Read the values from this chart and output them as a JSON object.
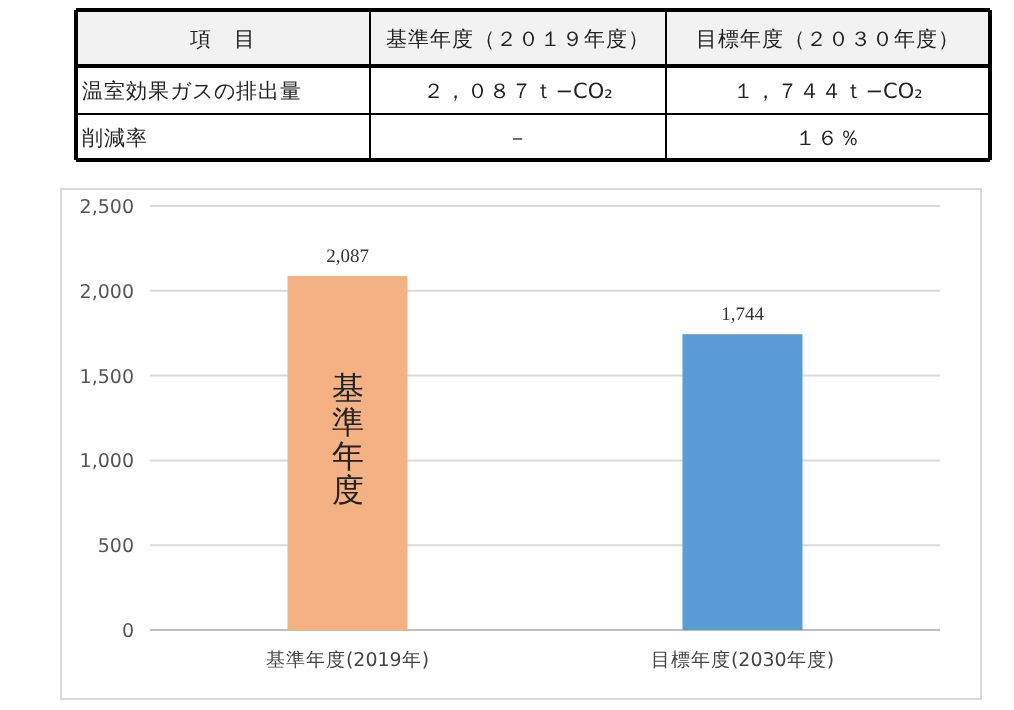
{
  "chart_data": [
    {
      "type": "other",
      "annotations": [
        "項　目",
        "基準年度（２０１９年度）",
        "目標年度（２０３０年度）",
        "温室効果ガスの排出量",
        "２，０８７ｔ−CO₂",
        "１，７４４ｔ−CO₂",
        "削減率",
        "－",
        "１６％"
      ]
    },
    {
      "type": "bar",
      "categories": [
        "基準年度(2019年)",
        "目標年度(2030年度)"
      ],
      "values": [
        2087,
        1744
      ],
      "colors": [
        "#f4b183",
        "#5b9bd5"
      ],
      "value_labels": [
        "2,087",
        "1,744"
      ],
      "ylim": [
        0,
        2500
      ],
      "yticks": [
        0,
        500,
        {
          "value": 1000,
          "label": "1,000"
        },
        {
          "value": 1500,
          "label": "1,500"
        },
        {
          "value": 2000,
          "label": "2,000"
        },
        {
          "value": 2500,
          "label": "2,500"
        }
      ],
      "grid": "y",
      "annotations": [
        "基準年度"
      ]
    }
  ]
}
